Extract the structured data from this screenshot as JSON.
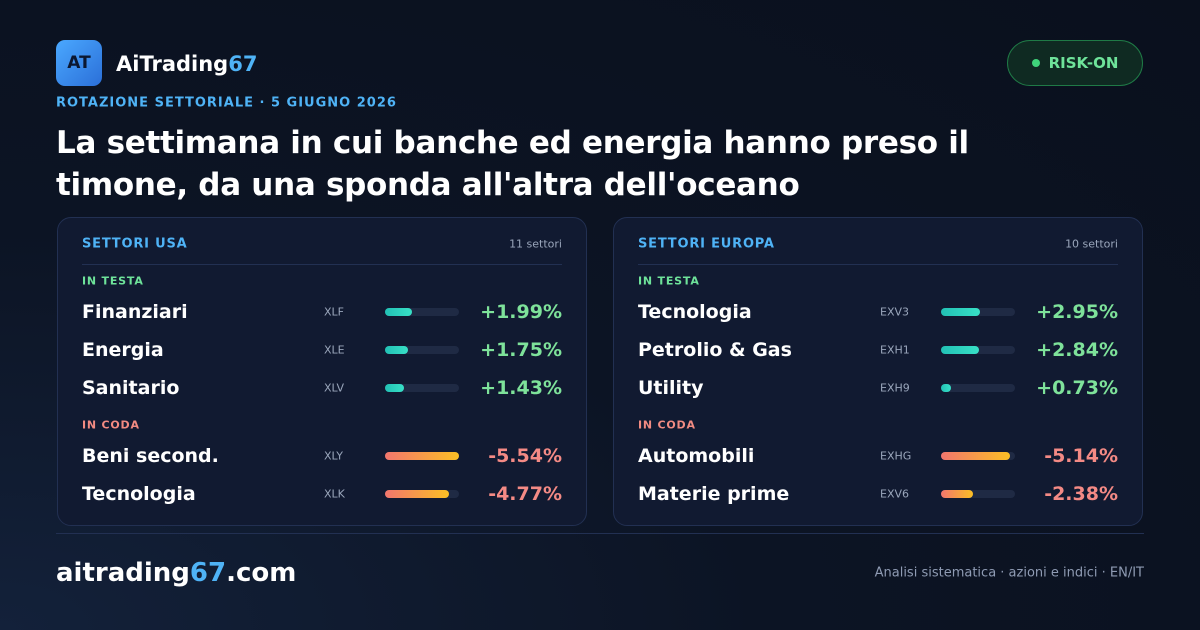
{
  "brand": {
    "logo": "AT",
    "name": "AiTrading",
    "accent": "67"
  },
  "badge": "RISK-ON",
  "kicker": "ROTAZIONE SETTORIALE · 5 GIUGNO 2026",
  "headline": [
    "La settimana in cui banche ed energia hanno preso il",
    "timone, da una sponda all'altra dell'oceano"
  ],
  "panels": [
    {
      "title": "SETTORI USA",
      "count": "11 settori",
      "groups": [
        {
          "label": "IN TESTA",
          "rows": [
            {
              "name": "Finanziari",
              "ticker": "XLF",
              "change": {
                "value": 1.99,
                "label": "+1.99%"
              }
            },
            {
              "name": "Energia",
              "ticker": "XLE",
              "change": {
                "value": 1.75,
                "label": "+1.75%"
              }
            },
            {
              "name": "Sanitario",
              "ticker": "XLV",
              "change": {
                "value": 1.43,
                "label": "+1.43%"
              }
            }
          ]
        },
        {
          "label": "IN CODA",
          "rows": [
            {
              "name": "Beni second.",
              "ticker": "XLY",
              "change": {
                "value": -5.54,
                "label": "-5.54%"
              }
            },
            {
              "name": "Tecnologia",
              "ticker": "XLK",
              "change": {
                "value": -4.77,
                "label": "-4.77%"
              }
            }
          ]
        }
      ]
    },
    {
      "title": "SETTORI EUROPA",
      "count": "10 settori",
      "groups": [
        {
          "label": "IN TESTA",
          "rows": [
            {
              "name": "Tecnologia",
              "ticker": "EXV3",
              "change": {
                "value": 2.95,
                "label": "+2.95%"
              }
            },
            {
              "name": "Petrolio & Gas",
              "ticker": "EXH1",
              "change": {
                "value": 2.84,
                "label": "+2.84%"
              }
            },
            {
              "name": "Utility",
              "ticker": "EXH9",
              "change": {
                "value": 0.73,
                "label": "+0.73%"
              }
            }
          ]
        },
        {
          "label": "IN CODA",
          "rows": [
            {
              "name": "Automobili",
              "ticker": "EXHG",
              "change": {
                "value": -5.14,
                "label": "-5.14%"
              }
            },
            {
              "name": "Materie prime",
              "ticker": "EXV6",
              "change": {
                "value": -2.38,
                "label": "-2.38%"
              }
            }
          ]
        }
      ]
    }
  ],
  "footer": {
    "site": {
      "name": "aitrading",
      "accent": "67",
      "tld": ".com"
    },
    "tagline": "Analisi sistematica · azioni e indici · EN/IT"
  }
}
